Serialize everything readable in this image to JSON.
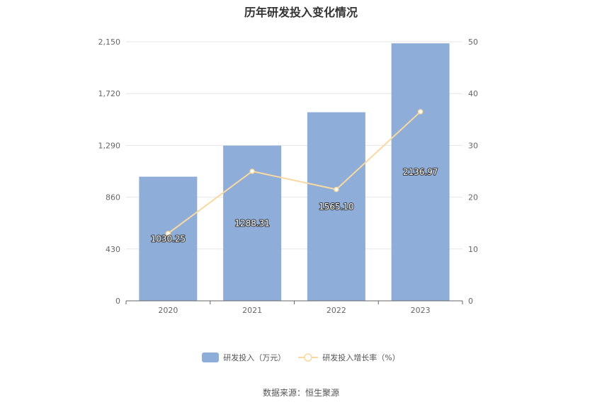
{
  "chart_data": {
    "type": "bar",
    "title": "历年研发投入变化情况",
    "categories": [
      "2020",
      "2021",
      "2022",
      "2023"
    ],
    "series": [
      {
        "name": "研发投入（万元）",
        "type": "bar",
        "axis": "left",
        "values": [
          1030.25,
          1288.31,
          1565.1,
          2136.97
        ],
        "labels": [
          "1030.25",
          "1288.31",
          "1565.10",
          "2136.97"
        ],
        "color": "#8eadd9"
      },
      {
        "name": "研发投入增长率（%）",
        "type": "line",
        "axis": "right",
        "values": [
          13.0,
          25.0,
          21.5,
          36.5
        ],
        "color": "#f9d9a0"
      }
    ],
    "y_left": {
      "ticks": [
        "0",
        "430",
        "860",
        "1,290",
        "1,720",
        "2,150"
      ],
      "range": [
        0,
        2150
      ]
    },
    "y_right": {
      "ticks": [
        "0",
        "10",
        "20",
        "30",
        "40",
        "50"
      ],
      "range": [
        0,
        50
      ]
    },
    "grid": true,
    "legend": "bottom-center"
  },
  "source": "数据来源：恒生聚源"
}
